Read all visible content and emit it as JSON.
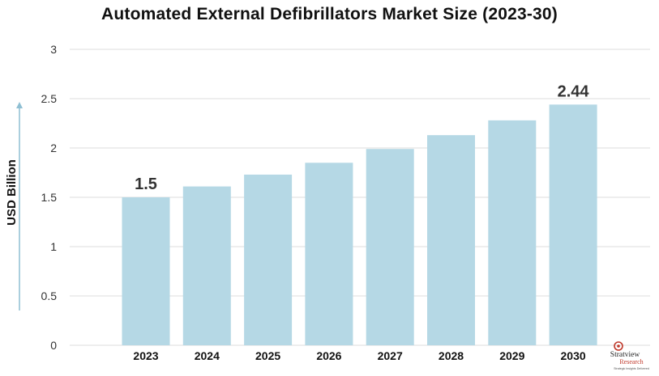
{
  "chart_data": {
    "type": "bar",
    "title": "Automated External Defibrillators Market Size (2023-30)",
    "ylabel": "USD Billion",
    "xlabel": "",
    "categories": [
      "2023",
      "2024",
      "2025",
      "2026",
      "2027",
      "2028",
      "2029",
      "2030"
    ],
    "values": [
      1.5,
      1.61,
      1.73,
      1.85,
      1.99,
      2.13,
      2.28,
      2.44
    ],
    "data_labels": {
      "2023": "1.5",
      "2030": "2.44"
    },
    "yticks": [
      "0",
      "0.5",
      "1",
      "1.5",
      "2",
      "2.5",
      "3"
    ],
    "ylim": [
      0,
      3
    ],
    "grid": true,
    "legend": "none",
    "bar_color": "#b5d8e5",
    "grid_color": "#dddddd",
    "axis_arrow_color": "#8fbfd3"
  },
  "logo": {
    "name": "Stratview",
    "sub": "Research",
    "tagline": "Strategic Insights Delivered"
  }
}
